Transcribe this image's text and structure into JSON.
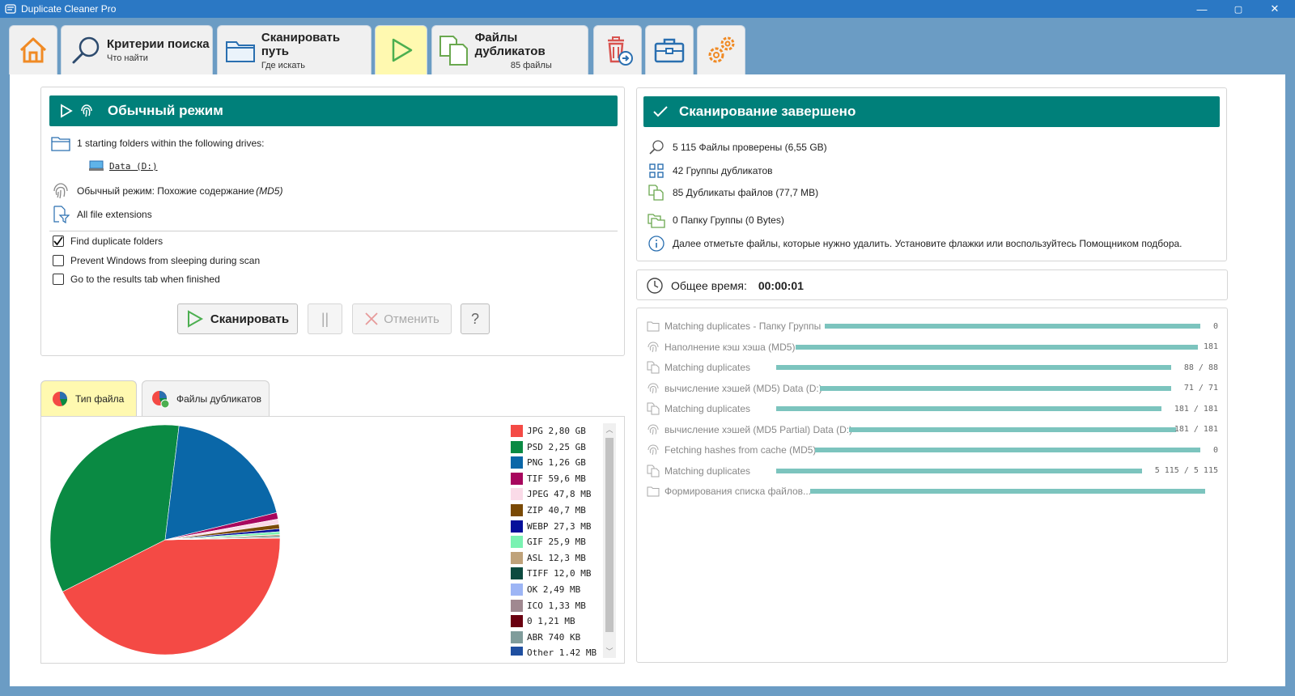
{
  "window": {
    "title": "Duplicate Cleaner Pro",
    "minimize": "—",
    "maximize": "▢",
    "close": "✕"
  },
  "toolbar": {
    "criteria": {
      "title": "Критерии поиска",
      "subtitle": "Что найти"
    },
    "scan_path": {
      "title": "Сканировать путь",
      "subtitle": "Где искать"
    },
    "duplicates": {
      "title": "Файлы дубликатов",
      "subtitle": "85 файлы"
    }
  },
  "mode_panel": {
    "header": "Обычный режим",
    "folders_text": "1 starting folders within the following drives:",
    "drive": "Data (D:)",
    "mode_text": "Обычный режим: Похожие содержание",
    "mode_hash": "(MD5)",
    "extensions": "All file extensions",
    "checkboxes": [
      {
        "label": "Find duplicate folders",
        "checked": true
      },
      {
        "label": "Prevent Windows from sleeping during scan",
        "checked": false
      },
      {
        "label": "Go to the results tab when finished",
        "checked": false
      }
    ],
    "buttons": {
      "scan": "Сканировать",
      "pause": "||",
      "cancel": "Отменить",
      "help": "?"
    }
  },
  "status_panel": {
    "header": "Сканирование завершено",
    "lines": [
      "5 115 Файлы проверены (6,55 GB)",
      "42 Группы дубликатов",
      "85 Дубликаты файлов (77,7 MB)",
      "0 Папку Группы (0 Bytes)",
      "Далее отметьте файлы, которые нужно удалить. Установите флажки или воспользуйтесь Помощником подбора."
    ]
  },
  "time": {
    "label": "Общее время:",
    "value": "00:00:01"
  },
  "progress": [
    {
      "label": "Matching duplicates - Папку Группы",
      "value": "0",
      "icon": "folder-icon",
      "fraction": 1.0
    },
    {
      "label": "Наполнение кэш хэша (MD5)",
      "value": "181",
      "icon": "fingerprint-icon",
      "fraction": 1.0
    },
    {
      "label": "Matching duplicates",
      "value": "88 / 88",
      "icon": "files-icon",
      "fraction": 1.0
    },
    {
      "label": "вычисление хэшей (MD5) Data (D:)",
      "value": "71 / 71",
      "icon": "fingerprint-icon",
      "fraction": 1.0
    },
    {
      "label": "Matching duplicates",
      "value": "181 / 181",
      "icon": "files-icon",
      "fraction": 1.0
    },
    {
      "label": "вычисление хэшей (MD5 Partial) Data (D:)",
      "value": "181 / 181",
      "icon": "fingerprint-icon",
      "fraction": 1.0
    },
    {
      "label": "Fetching hashes from cache (MD5)",
      "value": "0",
      "icon": "fingerprint-icon",
      "fraction": 1.0
    },
    {
      "label": "Matching duplicates",
      "value": "5 115 / 5 115",
      "icon": "files-icon",
      "fraction": 1.0
    },
    {
      "label": "Формирования списка файлов...",
      "value": "",
      "icon": "folder-icon",
      "fraction": 1.0
    }
  ],
  "chart_tabs": {
    "file_type": "Тип файла",
    "duplicate_files": "Файлы дубликатов"
  },
  "chart_data": {
    "type": "pie",
    "unit": "GB",
    "slices": [
      {
        "label": "JPG",
        "size_text": "2,80 GB",
        "value": 2.8,
        "color": "#f44a45"
      },
      {
        "label": "PSD",
        "size_text": "2,25 GB",
        "value": 2.25,
        "color": "#0a8a43"
      },
      {
        "label": "PNG",
        "size_text": "1,26 GB",
        "value": 1.26,
        "color": "#0a67a8"
      },
      {
        "label": "TIF",
        "size_text": "59,6 MB",
        "value": 0.0596,
        "color": "#a8075e"
      },
      {
        "label": "JPEG",
        "size_text": "47,8 MB",
        "value": 0.0478,
        "color": "#fadbe8"
      },
      {
        "label": "ZIP",
        "size_text": "40,7 MB",
        "value": 0.0407,
        "color": "#7a4a05"
      },
      {
        "label": "WEBP",
        "size_text": "27,3 MB",
        "value": 0.0273,
        "color": "#050f9a"
      },
      {
        "label": "GIF",
        "size_text": "25,9 MB",
        "value": 0.0259,
        "color": "#7af2b2"
      },
      {
        "label": "ASL",
        "size_text": "12,3 MB",
        "value": 0.0123,
        "color": "#bfa27a"
      },
      {
        "label": "TIFF",
        "size_text": "12,0 MB",
        "value": 0.012,
        "color": "#0d4a3f"
      },
      {
        "label": "OK",
        "size_text": "2,49 MB",
        "value": 0.00249,
        "color": "#9db5f5"
      },
      {
        "label": "ICO",
        "size_text": "1,33 MB",
        "value": 0.00133,
        "color": "#a08890"
      },
      {
        "label": "0",
        "size_text": "1,21 MB",
        "value": 0.00121,
        "color": "#6a0010"
      },
      {
        "label": "ABR",
        "size_text": "740 KB",
        "value": 0.00074,
        "color": "#7f9c9b"
      },
      {
        "label": "Other",
        "size_text": "1,42 MB",
        "value": 0.00142,
        "color": "#1f4fa0"
      }
    ]
  }
}
